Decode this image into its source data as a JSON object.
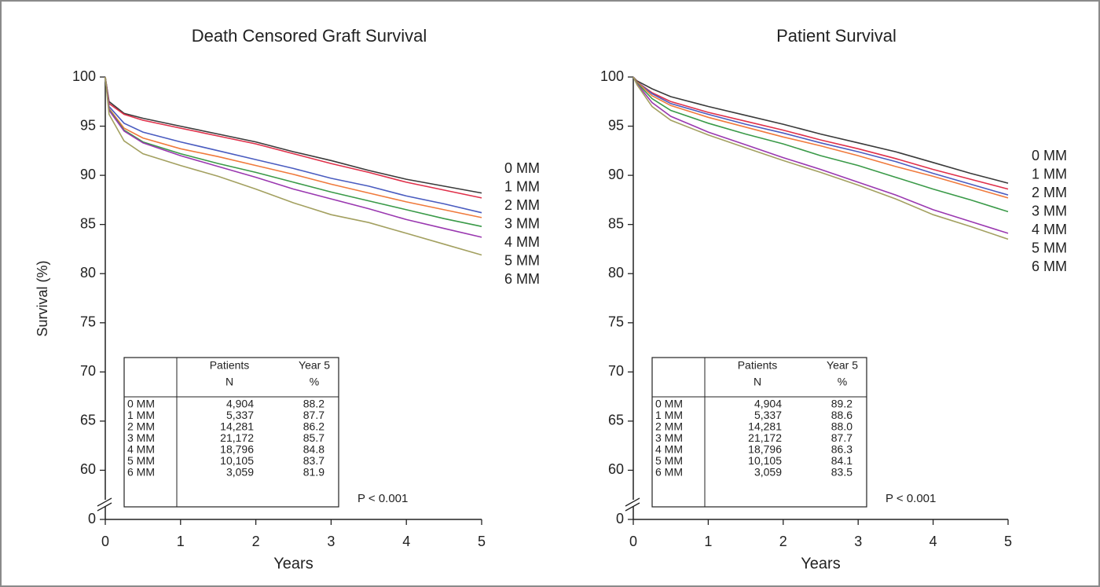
{
  "chart_data": [
    {
      "type": "line",
      "title": "Death Censored Graft Survival",
      "x_label": "Years",
      "y_label": "Survival (%)",
      "x": [
        0,
        0.05,
        0.25,
        0.5,
        1,
        1.5,
        2,
        2.5,
        3,
        3.5,
        4,
        4.5,
        5
      ],
      "xlim": [
        0,
        5
      ],
      "xticks": [
        0,
        1,
        2,
        3,
        4,
        5
      ],
      "ylim": [
        0,
        100
      ],
      "yticks": [
        0,
        60,
        65,
        70,
        75,
        80,
        85,
        90,
        95,
        100
      ],
      "y_break": [
        0,
        55
      ],
      "series": [
        {
          "name": "0 MM",
          "color": "#3a3a3a",
          "values": [
            100,
            97.5,
            96.3,
            95.8,
            95.0,
            94.2,
            93.4,
            92.4,
            91.5,
            90.5,
            89.6,
            88.9,
            88.2
          ]
        },
        {
          "name": "1 MM",
          "color": "#e0304a",
          "values": [
            100,
            97.3,
            96.2,
            95.6,
            94.8,
            94.0,
            93.2,
            92.2,
            91.2,
            90.3,
            89.3,
            88.5,
            87.7
          ]
        },
        {
          "name": "2 MM",
          "color": "#4a5cc0",
          "values": [
            100,
            97.0,
            95.3,
            94.4,
            93.4,
            92.5,
            91.6,
            90.7,
            89.7,
            88.9,
            87.9,
            87.1,
            86.2
          ]
        },
        {
          "name": "3 MM",
          "color": "#f07a3c",
          "values": [
            100,
            96.8,
            94.8,
            93.8,
            92.7,
            91.9,
            91.0,
            90.1,
            89.1,
            88.2,
            87.3,
            86.5,
            85.7
          ]
        },
        {
          "name": "4 MM",
          "color": "#3a9a48",
          "values": [
            100,
            96.7,
            94.6,
            93.4,
            92.2,
            91.2,
            90.3,
            89.3,
            88.3,
            87.4,
            86.5,
            85.6,
            84.8
          ]
        },
        {
          "name": "5 MM",
          "color": "#9a38b0",
          "values": [
            100,
            96.6,
            94.5,
            93.3,
            92.0,
            90.9,
            89.8,
            88.6,
            87.6,
            86.6,
            85.5,
            84.6,
            83.7
          ]
        },
        {
          "name": "6 MM",
          "color": "#a3a060",
          "values": [
            100,
            96.2,
            93.5,
            92.2,
            91.0,
            89.9,
            88.6,
            87.2,
            86.0,
            85.2,
            84.1,
            83.0,
            81.9
          ]
        }
      ],
      "table": {
        "columns": [
          [
            "Patients",
            "N"
          ],
          [
            "Year 5",
            "%"
          ]
        ],
        "rows": [
          [
            "0 MM",
            "4,904",
            "88.2"
          ],
          [
            "1 MM",
            "5,337",
            "87.7"
          ],
          [
            "2 MM",
            "14,281",
            "86.2"
          ],
          [
            "3 MM",
            "21,172",
            "85.7"
          ],
          [
            "4 MM",
            "18,796",
            "84.8"
          ],
          [
            "5 MM",
            "10,105",
            "83.7"
          ],
          [
            "6 MM",
            "3,059",
            "81.9"
          ]
        ]
      },
      "annotation": "P < 0.001"
    },
    {
      "type": "line",
      "title": "Patient Survival",
      "x_label": "Years",
      "x": [
        0,
        0.05,
        0.25,
        0.5,
        1,
        1.5,
        2,
        2.5,
        3,
        3.5,
        4,
        4.5,
        5
      ],
      "xlim": [
        0,
        5
      ],
      "xticks": [
        0,
        1,
        2,
        3,
        4,
        5
      ],
      "ylim": [
        0,
        100
      ],
      "yticks": [
        0,
        60,
        65,
        70,
        75,
        80,
        85,
        90,
        95,
        100
      ],
      "y_break": [
        0,
        55
      ],
      "series": [
        {
          "name": "0 MM",
          "color": "#3a3a3a",
          "values": [
            100,
            99.6,
            98.8,
            98.0,
            97.0,
            96.1,
            95.2,
            94.2,
            93.3,
            92.4,
            91.3,
            90.2,
            89.2
          ]
        },
        {
          "name": "1 MM",
          "color": "#e0304a",
          "values": [
            100,
            99.5,
            98.4,
            97.5,
            96.4,
            95.5,
            94.6,
            93.6,
            92.7,
            91.7,
            90.6,
            89.6,
            88.6
          ]
        },
        {
          "name": "2 MM",
          "color": "#4a5cc0",
          "values": [
            100,
            99.5,
            98.3,
            97.3,
            96.2,
            95.2,
            94.3,
            93.3,
            92.4,
            91.4,
            90.2,
            89.1,
            88.0
          ]
        },
        {
          "name": "3 MM",
          "color": "#f07a3c",
          "values": [
            100,
            99.5,
            98.1,
            97.1,
            95.9,
            94.9,
            93.9,
            93.0,
            92.0,
            90.9,
            89.9,
            88.8,
            87.7
          ]
        },
        {
          "name": "4 MM",
          "color": "#3a9a48",
          "values": [
            100,
            99.4,
            97.8,
            96.6,
            95.3,
            94.2,
            93.2,
            92.0,
            91.0,
            89.8,
            88.6,
            87.5,
            86.3
          ]
        },
        {
          "name": "5 MM",
          "color": "#9a38b0",
          "values": [
            100,
            99.3,
            97.4,
            96.0,
            94.4,
            93.1,
            91.8,
            90.6,
            89.3,
            88.0,
            86.5,
            85.3,
            84.1
          ]
        },
        {
          "name": "6 MM",
          "color": "#a3a060",
          "values": [
            100,
            99.2,
            97.0,
            95.6,
            94.1,
            92.8,
            91.5,
            90.3,
            89.0,
            87.6,
            86.0,
            84.8,
            83.5
          ]
        }
      ],
      "table": {
        "columns": [
          [
            "Patients",
            "N"
          ],
          [
            "Year 5",
            "%"
          ]
        ],
        "rows": [
          [
            "0 MM",
            "4,904",
            "89.2"
          ],
          [
            "1 MM",
            "5,337",
            "88.6"
          ],
          [
            "2 MM",
            "14,281",
            "88.0"
          ],
          [
            "3 MM",
            "21,172",
            "87.7"
          ],
          [
            "4 MM",
            "18,796",
            "86.3"
          ],
          [
            "5 MM",
            "10,105",
            "84.1"
          ],
          [
            "6 MM",
            "3,059",
            "83.5"
          ]
        ]
      },
      "annotation": "P < 0.001"
    }
  ]
}
